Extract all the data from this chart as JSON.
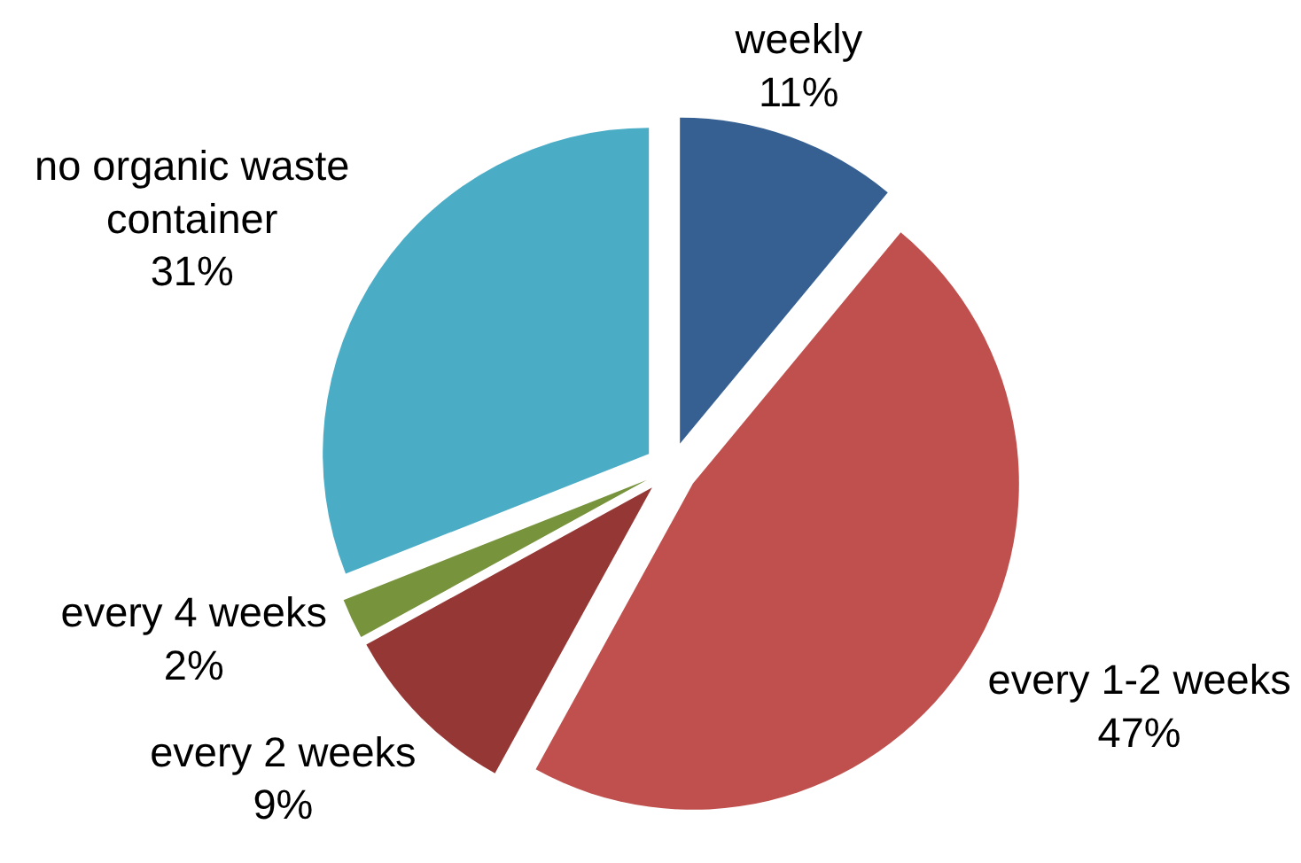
{
  "chart_data": {
    "type": "pie",
    "categories": [
      "weekly",
      "every 1-2 weeks",
      "every 2 weeks",
      "every 4 weeks",
      "no organic waste container"
    ],
    "values": [
      11,
      47,
      9,
      2,
      31
    ],
    "colors": [
      "#366092",
      "#c0504d",
      "#953735",
      "#77933c",
      "#4bacc6"
    ],
    "value_labels": [
      "11%",
      "47%",
      "9%",
      "2%",
      "31%"
    ]
  }
}
